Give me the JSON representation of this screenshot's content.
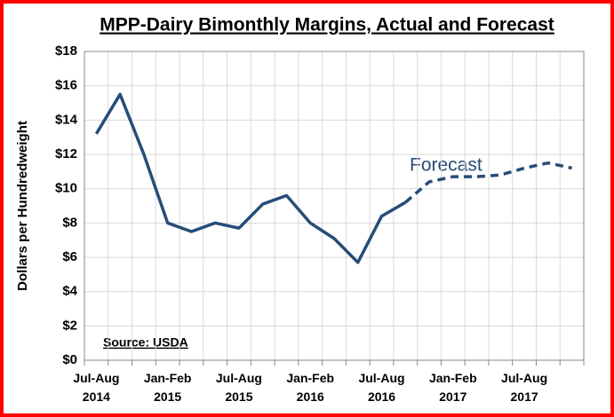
{
  "chart_data": {
    "type": "line",
    "title": "MPP-Dairy Bimonthly Margins, Actual and Forecast",
    "y_label": "Dollars per Hundredweight",
    "annotations": [
      "Forecast",
      "Source: USDA"
    ],
    "categories": [
      "Jul-Aug\n2014",
      null,
      null,
      "Jan-Feb\n2015",
      null,
      null,
      "Jul-Aug\n2015",
      null,
      null,
      "Jan-Feb\n2016",
      null,
      null,
      "Jul-Aug\n2016",
      null,
      null,
      "Jan-Feb\n2017",
      null,
      null,
      "Jul-Aug\n2017",
      null,
      null
    ],
    "series": [
      {
        "color": "#264d78",
        "style": "solid",
        "values": [
          13.2,
          15.5,
          12.0,
          8.0,
          7.5,
          8.0,
          7.7,
          9.1,
          9.6,
          8.0,
          7.1,
          5.7,
          8.4,
          9.2,
          null,
          null,
          null,
          null,
          null,
          null,
          null
        ]
      },
      {
        "color": "#264d78",
        "style": "dashed",
        "values": [
          null,
          null,
          null,
          null,
          null,
          null,
          null,
          null,
          null,
          null,
          null,
          null,
          null,
          9.2,
          10.4,
          10.7,
          10.7,
          10.8,
          11.2,
          11.5,
          11.2
        ]
      }
    ],
    "ylim": [
      0,
      18
    ],
    "yticks": [
      {
        "value": 0,
        "label": "$0"
      },
      {
        "value": 2,
        "label": "$2"
      },
      {
        "value": 4,
        "label": "$4"
      },
      {
        "value": 6,
        "label": "$6"
      },
      {
        "value": 8,
        "label": "$8"
      },
      {
        "value": 10,
        "label": "$10"
      },
      {
        "value": 12,
        "label": "$12"
      },
      {
        "value": 14,
        "label": "$14"
      },
      {
        "value": 16,
        "label": "$16"
      },
      {
        "value": 18,
        "label": "$18"
      }
    ],
    "grid": true
  }
}
